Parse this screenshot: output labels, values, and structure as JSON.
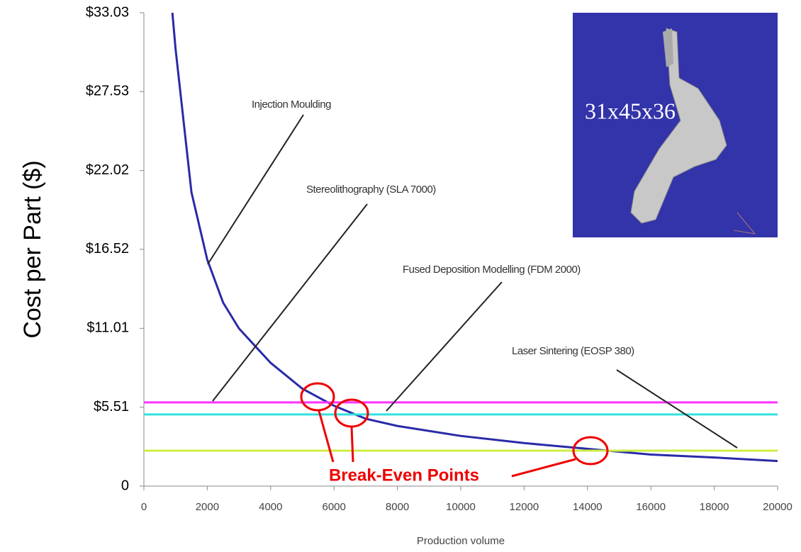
{
  "chart_data": {
    "type": "line",
    "y_label": "Cost per Part ($)",
    "x_label": "Production volume",
    "xlim": [
      0,
      20000
    ],
    "xticks": [
      0,
      2000,
      4000,
      6000,
      8000,
      10000,
      12000,
      14000,
      16000,
      18000,
      20000
    ],
    "ylim": [
      0,
      33.03
    ],
    "yticks": [
      0,
      {
        "value": 5.51,
        "label": "$5.51"
      },
      {
        "value": 11.01,
        "label": "$11.01"
      },
      {
        "value": 16.52,
        "label": "$16.52"
      },
      {
        "value": 22.02,
        "label": "$22.02"
      },
      {
        "value": 27.53,
        "label": "$27.53"
      },
      {
        "value": 33.03,
        "label": "$33.03"
      }
    ],
    "series": [
      {
        "name": "Injection Moulding",
        "color": "#2a2aa8",
        "x": [
          900,
          1000,
          1500,
          2000,
          2500,
          3000,
          3500,
          4000,
          5000,
          6000,
          7000,
          8000,
          10000,
          12000,
          14000,
          16000,
          18000,
          20000
        ],
        "values": [
          33.03,
          30.5,
          20.5,
          15.8,
          12.8,
          11.0,
          9.8,
          8.6,
          6.8,
          5.6,
          4.7,
          4.2,
          3.5,
          3.0,
          2.6,
          2.2,
          2.0,
          1.75
        ]
      },
      {
        "name": "Stereolithography (SLA 7000)",
        "color": "#ff33ff",
        "x": [
          0,
          20000
        ],
        "values": [
          5.84,
          5.84
        ]
      },
      {
        "name": "Fused Deposition Modelling (FDM 2000)",
        "color": "#33e0e0",
        "x": [
          0,
          20000
        ],
        "values": [
          5.0,
          5.0
        ]
      },
      {
        "name": "Laser Sintering (EOSP 380)",
        "color": "#ccee44",
        "x": [
          0,
          20000
        ],
        "values": [
          2.47,
          2.47
        ]
      }
    ],
    "annotations": [
      "Break-Even Points",
      "31x45x36"
    ]
  }
}
